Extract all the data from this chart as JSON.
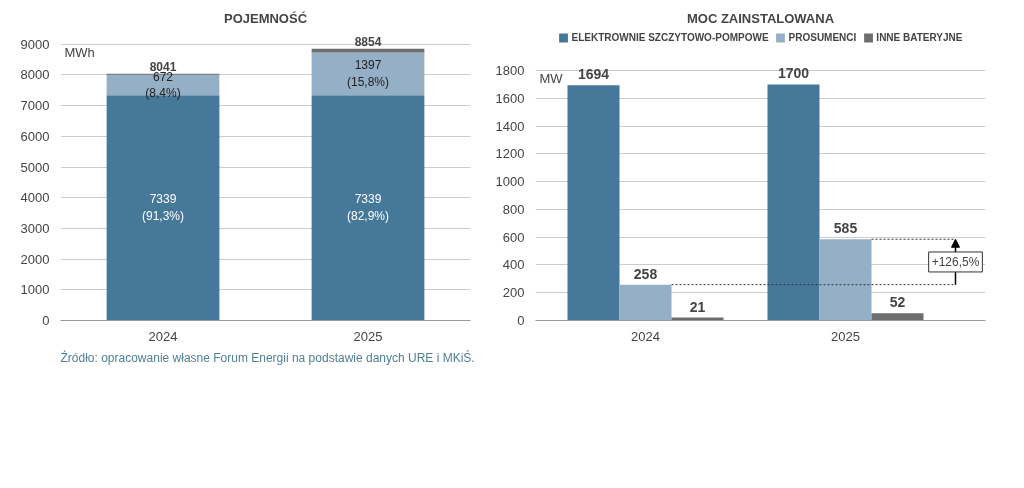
{
  "chart_data": [
    {
      "type": "bar",
      "stacked": true,
      "title": "POJEMNOŚĆ",
      "ylabel": "MWh",
      "categories": [
        "2024",
        "2025"
      ],
      "ylim": [
        0,
        9000
      ],
      "yticks": [
        0,
        1000,
        2000,
        3000,
        4000,
        5000,
        6000,
        7000,
        8000,
        9000
      ],
      "grid": "y",
      "series": [
        {
          "color": "#46789a",
          "values": [
            7339,
            7339
          ],
          "value_labels": [
            "7339\n(91,3%)",
            "7339\n(82,9%)"
          ]
        },
        {
          "color": "#94afc6",
          "values": [
            672,
            1397
          ],
          "value_labels": [
            "672\n(8,4%)",
            "1397\n(15,8%)"
          ]
        },
        {
          "color": "#6d6d6d",
          "values": [
            30,
            120
          ]
        }
      ],
      "totals": [
        "8041",
        "8854"
      ],
      "annotations": [
        "Źródło: opracowanie własne Forum Energii na podstawie danych URE i MKiŚ."
      ]
    },
    {
      "type": "bar",
      "title": "MOC ZAINSTALOWANA",
      "ylabel": "MW",
      "categories": [
        "2024",
        "2025"
      ],
      "ylim": [
        0,
        1800
      ],
      "yticks": [
        0,
        200,
        400,
        600,
        800,
        1000,
        1200,
        1400,
        1600,
        1800
      ],
      "grid": "y",
      "legend": "top",
      "data_labels": true,
      "series": [
        {
          "name": "ELEKTROWNIE SZCZYTOWO-POMPOWE",
          "color": "#46789a",
          "values": [
            1694,
            1700
          ]
        },
        {
          "name": "PROSUMENCI",
          "color": "#94afc6",
          "values": [
            258,
            585
          ]
        },
        {
          "name": "INNE BATERYJNE",
          "color": "#6d6d6d",
          "values": [
            21,
            52
          ]
        }
      ],
      "annotations": [
        "+126,5%"
      ]
    }
  ]
}
